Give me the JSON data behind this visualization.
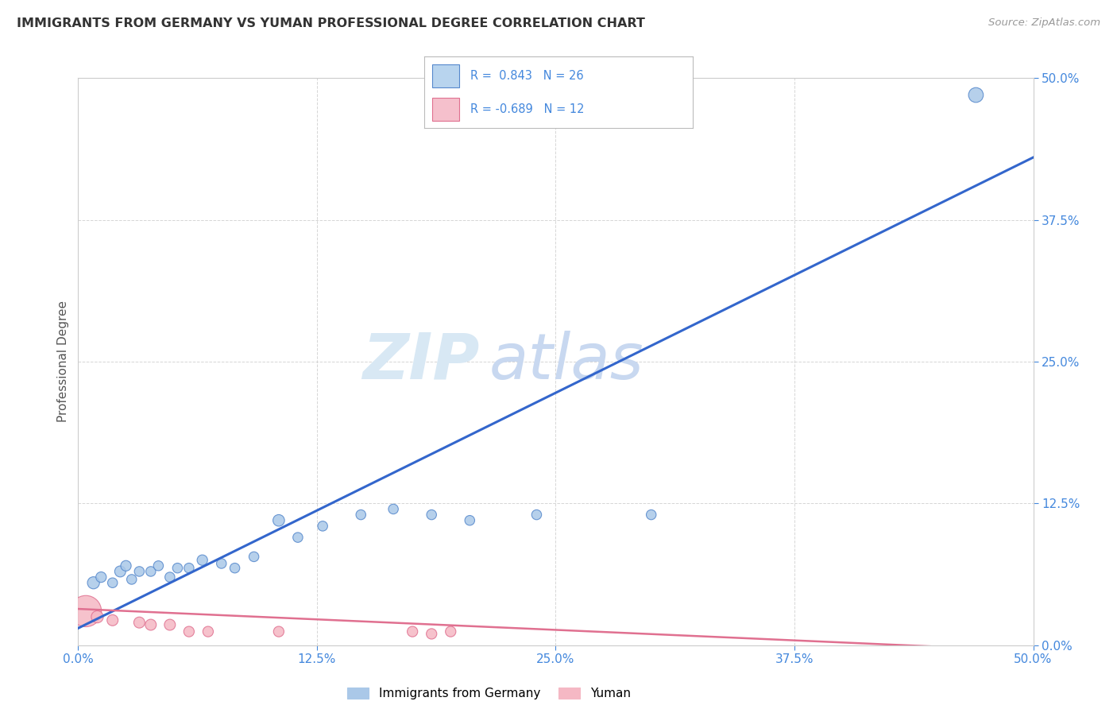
{
  "title": "IMMIGRANTS FROM GERMANY VS YUMAN PROFESSIONAL DEGREE CORRELATION CHART",
  "source": "Source: ZipAtlas.com",
  "ylabel": "Professional Degree",
  "xlim": [
    0.0,
    0.5
  ],
  "ylim": [
    0.0,
    0.5
  ],
  "xtick_vals": [
    0.0,
    0.125,
    0.25,
    0.375,
    0.5
  ],
  "ytick_vals": [
    0.0,
    0.125,
    0.25,
    0.375,
    0.5
  ],
  "xtick_labels": [
    "0.0%",
    "12.5%",
    "25.0%",
    "37.5%",
    "50.0%"
  ],
  "ytick_labels": [
    "0.0%",
    "12.5%",
    "25.0%",
    "37.5%",
    "50.0%"
  ],
  "blue_r": 0.843,
  "blue_n": 26,
  "pink_r": -0.689,
  "pink_n": 12,
  "blue_scatter_color": "#aac8e8",
  "blue_edge_color": "#5588cc",
  "pink_scatter_color": "#f5b8c4",
  "pink_edge_color": "#e07090",
  "blue_line_color": "#3366cc",
  "pink_line_color": "#e07090",
  "legend_box_blue_face": "#b8d4ee",
  "legend_box_pink_face": "#f5c0cc",
  "tick_color": "#4488dd",
  "watermark_zip_color": "#d8e8f4",
  "watermark_atlas_color": "#c8d8f0",
  "background_color": "#ffffff",
  "grid_color": "#cccccc",
  "blue_scatter_x": [
    0.008,
    0.012,
    0.018,
    0.022,
    0.025,
    0.028,
    0.032,
    0.038,
    0.042,
    0.048,
    0.052,
    0.058,
    0.065,
    0.075,
    0.082,
    0.092,
    0.105,
    0.115,
    0.128,
    0.148,
    0.165,
    0.185,
    0.205,
    0.24,
    0.3,
    0.47
  ],
  "blue_scatter_y": [
    0.055,
    0.06,
    0.055,
    0.065,
    0.07,
    0.058,
    0.065,
    0.065,
    0.07,
    0.06,
    0.068,
    0.068,
    0.075,
    0.072,
    0.068,
    0.078,
    0.11,
    0.095,
    0.105,
    0.115,
    0.12,
    0.115,
    0.11,
    0.115,
    0.115,
    0.485
  ],
  "blue_scatter_size": [
    120,
    90,
    80,
    100,
    90,
    80,
    80,
    80,
    80,
    80,
    80,
    80,
    90,
    80,
    80,
    80,
    110,
    80,
    80,
    80,
    80,
    80,
    80,
    80,
    80,
    180
  ],
  "pink_scatter_x": [
    0.004,
    0.01,
    0.018,
    0.032,
    0.038,
    0.048,
    0.058,
    0.068,
    0.105,
    0.175,
    0.185,
    0.195
  ],
  "pink_scatter_y": [
    0.03,
    0.025,
    0.022,
    0.02,
    0.018,
    0.018,
    0.012,
    0.012,
    0.012,
    0.012,
    0.01,
    0.012
  ],
  "pink_scatter_size": [
    800,
    120,
    100,
    100,
    100,
    100,
    90,
    90,
    90,
    90,
    90,
    90
  ],
  "blue_line_x": [
    0.0,
    0.5
  ],
  "blue_line_y": [
    0.015,
    0.43
  ],
  "pink_line_x": [
    0.0,
    0.5
  ],
  "pink_line_y": [
    0.032,
    -0.005
  ],
  "legend_label_blue": "Immigrants from Germany",
  "legend_label_pink": "Yuman"
}
